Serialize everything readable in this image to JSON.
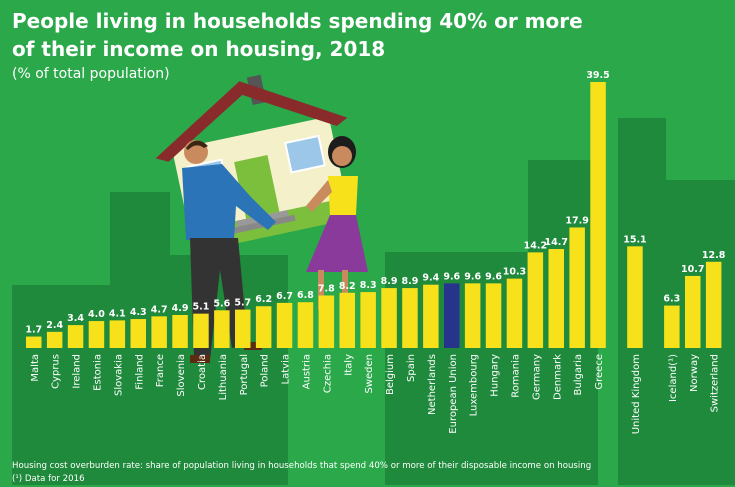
{
  "colors": {
    "background": "#2aa84a",
    "building_shade": "#1f8a3c",
    "bar": "#f7e11a",
    "bar_highlight": "#27348b",
    "text": "#ffffff"
  },
  "chart_data": {
    "type": "bar",
    "title": "People living in households spending 40% or more of their income on housing, 2018",
    "title_lines": [
      "People living in households spending 40% or more",
      "of their income on housing, 2018"
    ],
    "subtitle": "(% of total population)",
    "highlight": "European Union",
    "categories": [
      "Malta",
      "Cyprus",
      "Ireland",
      "Estonia",
      "Slovakia",
      "Finland",
      "France",
      "Slovenia",
      "Croatia",
      "Lithuania",
      "Portugal",
      "Poland",
      "Latvia",
      "Austria",
      "Czechia",
      "Italy",
      "Sweden",
      "Belgium",
      "Spain",
      "Netherlands",
      "European Union",
      "Luxembourg",
      "Hungary",
      "Romania",
      "Germany",
      "Denmark",
      "Bulgaria",
      "Greece",
      "United Kingdom",
      "Iceland(¹)",
      "Norway",
      "Switzerland"
    ],
    "values": [
      1.7,
      2.4,
      3.4,
      4.0,
      4.1,
      4.3,
      4.7,
      4.9,
      5.1,
      5.6,
      5.7,
      6.2,
      6.7,
      6.8,
      7.8,
      8.2,
      8.3,
      8.9,
      8.9,
      9.4,
      9.6,
      9.6,
      9.6,
      10.3,
      14.2,
      14.7,
      17.9,
      39.5,
      15.1,
      6.3,
      10.7,
      12.8
    ],
    "value_labels": [
      "1.7",
      "2.4",
      "3.4",
      "4.0",
      "4.1",
      "4.3",
      "4.7",
      "4.9",
      "5.1",
      "5.6",
      "5.7",
      "6.2",
      "6.7",
      "6.8",
      "7.8",
      "8.2",
      "8.3",
      "8.9",
      "8.9",
      "9.4",
      "9.6",
      "9.6",
      "9.6",
      "10.3",
      "14.2",
      "14.7",
      "17.9",
      "39.5",
      "15.1",
      "6.3",
      "10.7",
      "12.8"
    ],
    "groups": [
      28,
      1,
      3
    ],
    "ylim": [
      0,
      39.5
    ],
    "grid": false,
    "notes": [
      "Housing cost overburden rate: share of population living in households that spend 40% or more of their disposable income on housing",
      "(¹) Data for 2016"
    ]
  }
}
